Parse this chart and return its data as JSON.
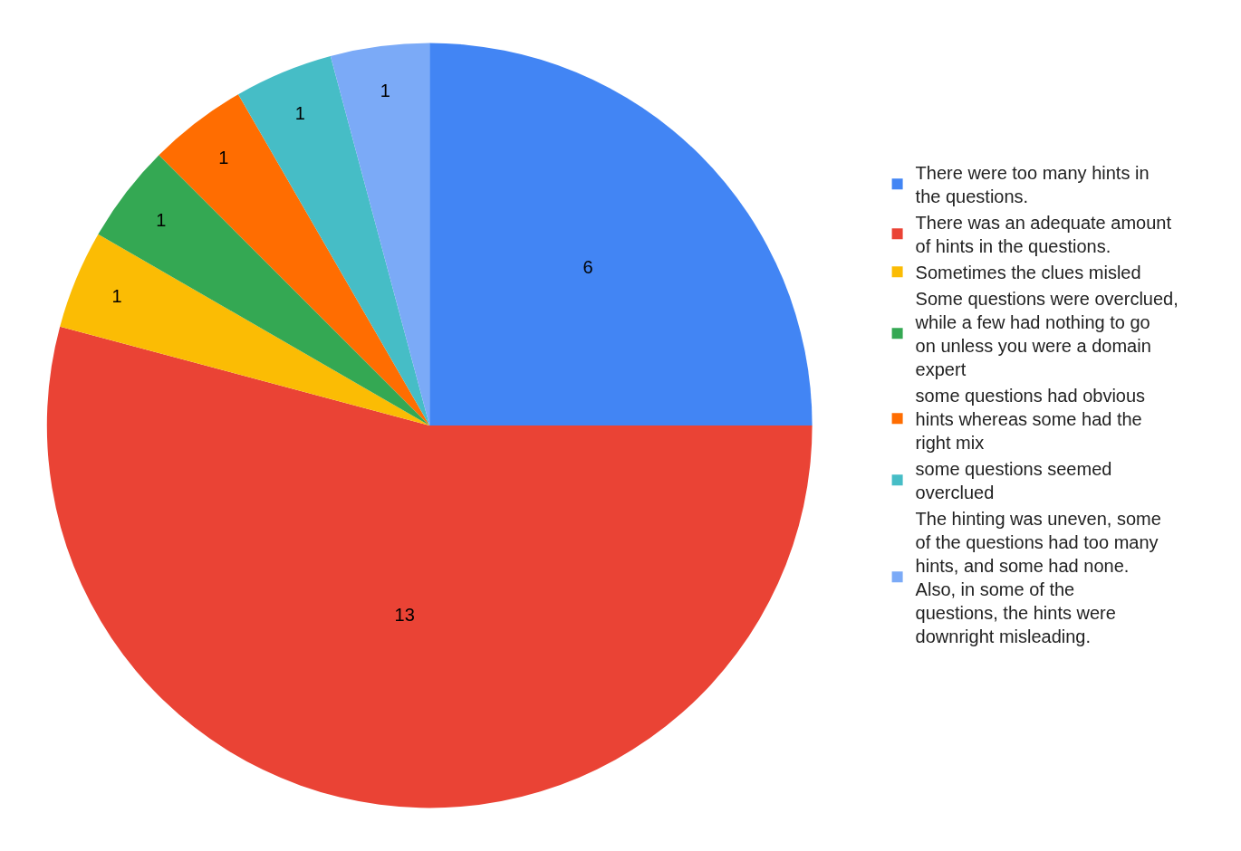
{
  "chart_data": {
    "type": "pie",
    "categories": [
      "There were too many hints in the questions.",
      "There was an adequate amount of hints in the questions.",
      "Sometimes the clues misled",
      "Some questions were overclued, while a few had nothing to go on unless you were a domain expert",
      "some questions had obvious hints whereas some had the right mix",
      "some questions seemed overclued",
      "The hinting was uneven, some of the questions had too many hints, and some had none. Also, in some of the questions, the hints were downright misleading."
    ],
    "values": [
      6,
      13,
      1,
      1,
      1,
      1,
      1
    ],
    "colors": [
      "#4285f4",
      "#ea4335",
      "#fbbc04",
      "#34a853",
      "#ff6d01",
      "#46bdc6",
      "#7baaf7"
    ],
    "data_labels": true,
    "legend": "right"
  }
}
